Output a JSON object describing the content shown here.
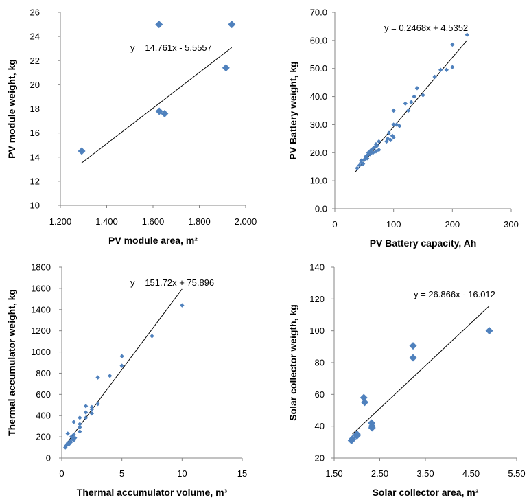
{
  "chart_data": [
    {
      "type": "scatter",
      "xlabel": "PV module area, m²",
      "ylabel": "PV module weight, kg",
      "xlim": [
        1.2,
        2.0
      ],
      "ylim": [
        10,
        26
      ],
      "x_ticks": [
        "1.200",
        "1.400",
        "1.600",
        "1.800",
        "2.000"
      ],
      "y_ticks": [
        "10",
        "12",
        "14",
        "16",
        "18",
        "20",
        "22",
        "24",
        "26"
      ],
      "marker": "diamond-large",
      "color": "#4F81BD",
      "trendline": {
        "equation": "y = 14.761x - 5.5557",
        "slope": 14.761,
        "intercept": -5.5557,
        "x_range": [
          1.29,
          1.94
        ]
      },
      "points": [
        {
          "x": 1.292,
          "y": 14.5
        },
        {
          "x": 1.626,
          "y": 25.0
        },
        {
          "x": 1.627,
          "y": 17.8
        },
        {
          "x": 1.65,
          "y": 17.6
        },
        {
          "x": 1.915,
          "y": 21.4
        },
        {
          "x": 1.94,
          "y": 25.0
        }
      ]
    },
    {
      "type": "scatter",
      "xlabel": "PV Battery capacity, Ah",
      "ylabel": "PV Battery weight, kg",
      "xlim": [
        0,
        300
      ],
      "ylim": [
        0,
        70
      ],
      "x_ticks": [
        "0",
        "100",
        "200",
        "300"
      ],
      "y_ticks": [
        "0.0",
        "10.0",
        "20.0",
        "30.0",
        "40.0",
        "50.0",
        "60.0",
        "70.0"
      ],
      "marker": "diamond-small",
      "color": "#4F81BD",
      "trendline": {
        "equation": "y = 0.2468x + 4.5352",
        "slope": 0.2468,
        "intercept": 4.5352,
        "x_range": [
          35,
          225
        ]
      },
      "points": [
        {
          "x": 38,
          "y": 14.5
        },
        {
          "x": 42,
          "y": 15.5
        },
        {
          "x": 45,
          "y": 16.5
        },
        {
          "x": 45,
          "y": 17.2
        },
        {
          "x": 48,
          "y": 16.0
        },
        {
          "x": 50,
          "y": 17.5
        },
        {
          "x": 52,
          "y": 18.5
        },
        {
          "x": 55,
          "y": 19.0
        },
        {
          "x": 55,
          "y": 18.0
        },
        {
          "x": 57,
          "y": 20.0
        },
        {
          "x": 60,
          "y": 19.5
        },
        {
          "x": 60,
          "y": 20.5
        },
        {
          "x": 62,
          "y": 21.0
        },
        {
          "x": 65,
          "y": 21.5
        },
        {
          "x": 65,
          "y": 20.0
        },
        {
          "x": 68,
          "y": 22.0
        },
        {
          "x": 70,
          "y": 20.5
        },
        {
          "x": 70,
          "y": 23.0
        },
        {
          "x": 72,
          "y": 22.5
        },
        {
          "x": 75,
          "y": 24.0
        },
        {
          "x": 75,
          "y": 21.0
        },
        {
          "x": 88,
          "y": 24.0
        },
        {
          "x": 90,
          "y": 25.0
        },
        {
          "x": 92,
          "y": 27.0
        },
        {
          "x": 95,
          "y": 24.5
        },
        {
          "x": 98,
          "y": 26.0
        },
        {
          "x": 100,
          "y": 30.0
        },
        {
          "x": 100,
          "y": 35.0
        },
        {
          "x": 100,
          "y": 25.5
        },
        {
          "x": 105,
          "y": 30.0
        },
        {
          "x": 110,
          "y": 29.5
        },
        {
          "x": 120,
          "y": 37.5
        },
        {
          "x": 125,
          "y": 35.0
        },
        {
          "x": 130,
          "y": 38.0
        },
        {
          "x": 135,
          "y": 40.0
        },
        {
          "x": 140,
          "y": 43.0
        },
        {
          "x": 150,
          "y": 40.5
        },
        {
          "x": 170,
          "y": 47.0
        },
        {
          "x": 180,
          "y": 49.5
        },
        {
          "x": 190,
          "y": 49.5
        },
        {
          "x": 200,
          "y": 50.5
        },
        {
          "x": 200,
          "y": 58.5
        },
        {
          "x": 225,
          "y": 62.0
        }
      ]
    },
    {
      "type": "scatter",
      "xlabel": "Thermal  accumulator volume, m³",
      "ylabel": "Thermal accumulator weight, kg",
      "xlim": [
        0,
        15
      ],
      "ylim": [
        0,
        1800
      ],
      "x_ticks": [
        "0",
        "5",
        "10",
        "15"
      ],
      "y_ticks": [
        "0",
        "200",
        "400",
        "600",
        "800",
        "1000",
        "1200",
        "1400",
        "1600",
        "1800"
      ],
      "marker": "diamond-small",
      "color": "#4F81BD",
      "trendline": {
        "equation": "y = 151.72x + 75.896",
        "slope": 151.72,
        "intercept": 75.896,
        "x_range": [
          0.2,
          10
        ]
      },
      "points": [
        {
          "x": 0.3,
          "y": 100
        },
        {
          "x": 0.4,
          "y": 120
        },
        {
          "x": 0.5,
          "y": 140
        },
        {
          "x": 0.5,
          "y": 230
        },
        {
          "x": 0.6,
          "y": 130
        },
        {
          "x": 0.7,
          "y": 160
        },
        {
          "x": 0.75,
          "y": 150
        },
        {
          "x": 0.8,
          "y": 200
        },
        {
          "x": 0.9,
          "y": 180
        },
        {
          "x": 1.0,
          "y": 170
        },
        {
          "x": 1.0,
          "y": 340
        },
        {
          "x": 1.0,
          "y": 220
        },
        {
          "x": 1.1,
          "y": 190
        },
        {
          "x": 1.5,
          "y": 250
        },
        {
          "x": 1.5,
          "y": 290
        },
        {
          "x": 1.5,
          "y": 380
        },
        {
          "x": 1.5,
          "y": 320
        },
        {
          "x": 2.0,
          "y": 380
        },
        {
          "x": 2.0,
          "y": 430
        },
        {
          "x": 2.0,
          "y": 490
        },
        {
          "x": 2.5,
          "y": 420
        },
        {
          "x": 2.5,
          "y": 460
        },
        {
          "x": 2.5,
          "y": 480
        },
        {
          "x": 3.0,
          "y": 510
        },
        {
          "x": 3.0,
          "y": 760
        },
        {
          "x": 4.0,
          "y": 775
        },
        {
          "x": 5.0,
          "y": 870
        },
        {
          "x": 5.0,
          "y": 960
        },
        {
          "x": 7.5,
          "y": 1150
        },
        {
          "x": 10.0,
          "y": 1440
        }
      ]
    },
    {
      "type": "scatter",
      "xlabel": "Solar collector area, m²",
      "ylabel": "Solar collector weigth, kg",
      "xlim": [
        1.5,
        5.5
      ],
      "ylim": [
        20,
        140
      ],
      "x_ticks": [
        "1.50",
        "2.50",
        "3.50",
        "4.50",
        "5.50"
      ],
      "y_ticks": [
        "20",
        "40",
        "60",
        "80",
        "100",
        "120",
        "140"
      ],
      "marker": "diamond-large",
      "color": "#4F81BD",
      "trendline": {
        "equation": "y = 26.866x - 16.012",
        "slope": 26.866,
        "intercept": -16.012,
        "x_range": [
          1.9,
          4.9
        ]
      },
      "points": [
        {
          "x": 1.88,
          "y": 31
        },
        {
          "x": 1.9,
          "y": 32
        },
        {
          "x": 2.0,
          "y": 35
        },
        {
          "x": 2.0,
          "y": 34
        },
        {
          "x": 2.15,
          "y": 58
        },
        {
          "x": 2.17,
          "y": 55
        },
        {
          "x": 2.32,
          "y": 42
        },
        {
          "x": 2.33,
          "y": 40
        },
        {
          "x": 2.33,
          "y": 39
        },
        {
          "x": 3.23,
          "y": 90.5
        },
        {
          "x": 3.23,
          "y": 83
        },
        {
          "x": 4.9,
          "y": 100
        }
      ]
    }
  ]
}
